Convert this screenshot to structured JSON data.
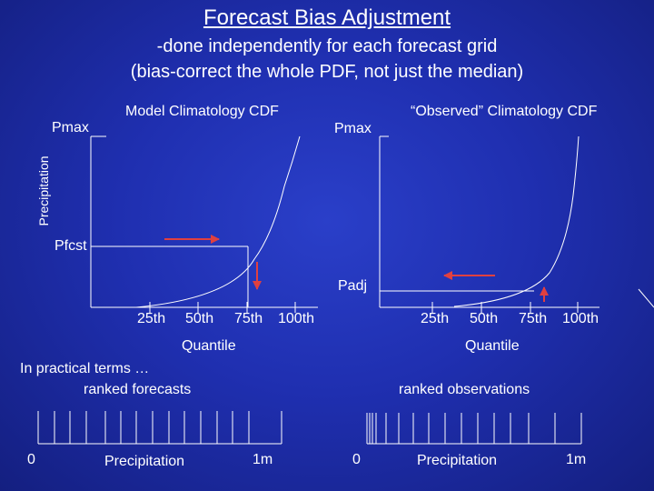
{
  "slide": {
    "title": "Forecast Bias Adjustment",
    "subtitle_line1": "-done independently for each forecast grid",
    "subtitle_line2": "(bias-correct the whole PDF, not just the median)"
  },
  "left_panel": {
    "title": "Model Climatology CDF",
    "ymax_label": "Pmax",
    "ylabel": "Precipitation",
    "marker_label": "Pfcst",
    "x_ticks": [
      "25th",
      "50th",
      "75th",
      "100th"
    ],
    "xlabel": "Quantile"
  },
  "right_panel": {
    "title": "“Observed” Climatology CDF",
    "ymax_label": "Pmax",
    "marker_label": "Padj",
    "x_ticks": [
      "25th",
      "50th",
      "75th",
      "100th"
    ],
    "xlabel": "Quantile"
  },
  "practical": {
    "heading": "In practical terms …",
    "left_caption": "ranked forecasts",
    "right_caption": "ranked observations"
  },
  "left_strip": {
    "start_label": "0",
    "axis_label": "Precipitation",
    "end_label": "1m"
  },
  "right_strip": {
    "start_label": "0",
    "axis_label": "Precipitation",
    "end_label": "1m"
  },
  "colors": {
    "background": "#1f2fb0",
    "arrow": "#e04040",
    "ink": "#ffffff"
  }
}
